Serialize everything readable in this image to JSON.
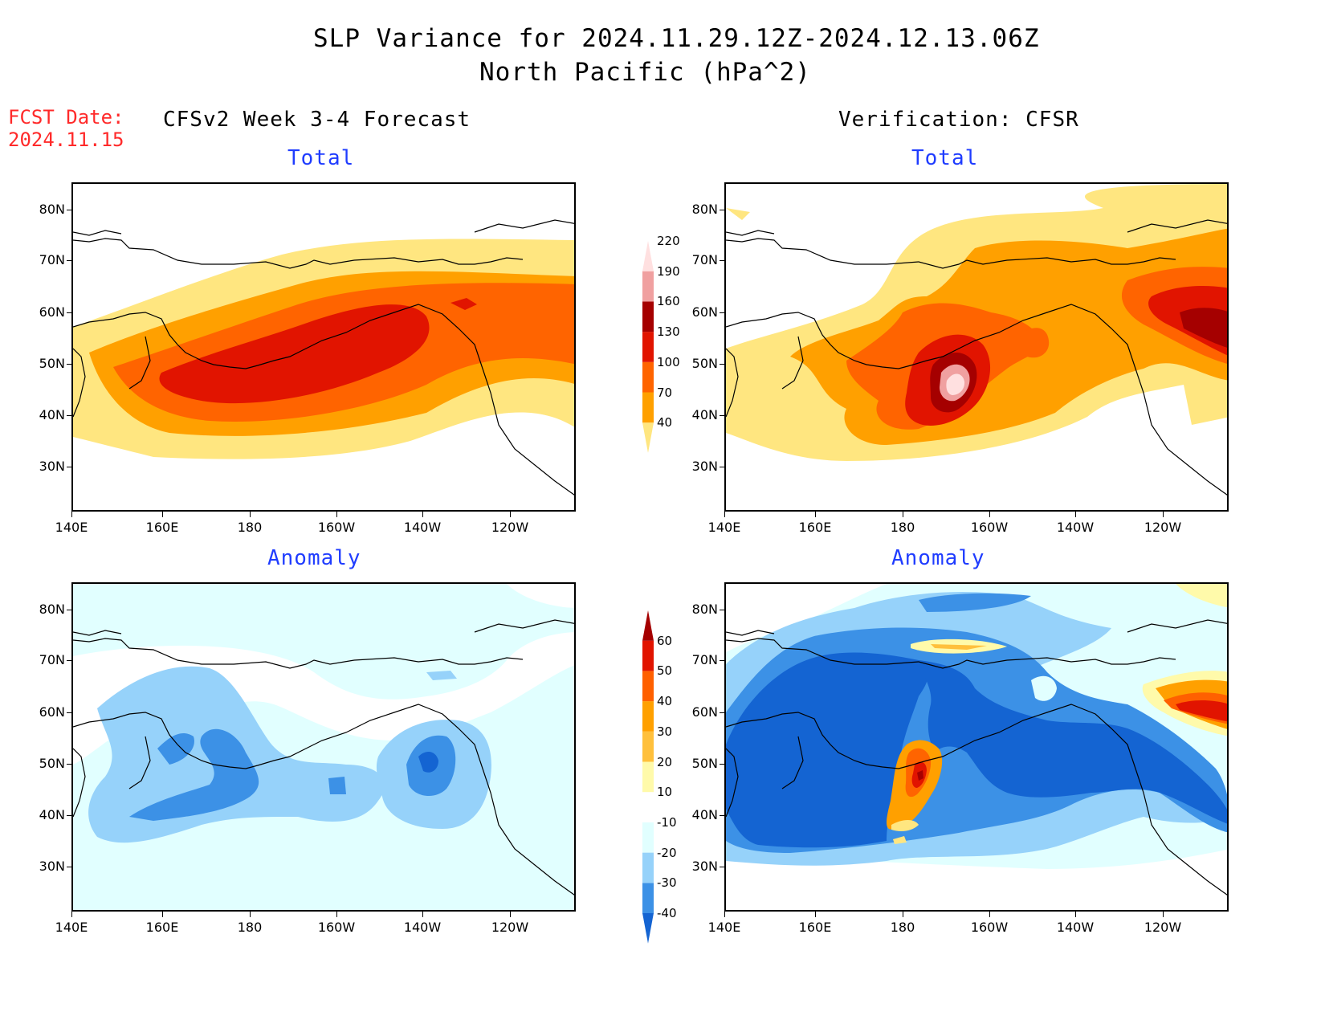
{
  "title": {
    "line1": "SLP Variance for 2024.11.29.12Z-2024.12.13.06Z",
    "line2": "North Pacific (hPa^2)"
  },
  "fcst": {
    "label": "FCST Date:",
    "date": "2024.11.15"
  },
  "columns": {
    "left": "CFSv2 Week 3-4 Forecast",
    "right": "Verification: CFSR"
  },
  "panels": {
    "fc_total": "Total",
    "ver_total": "Total",
    "fc_anom": "Anomaly",
    "ver_anom": "Anomaly"
  },
  "axes": {
    "lat_labels": [
      "80N",
      "70N",
      "60N",
      "50N",
      "40N",
      "30N"
    ],
    "lon_labels": [
      "140E",
      "160E",
      "180",
      "160W",
      "140W",
      "120W"
    ]
  },
  "colorbars": {
    "total": {
      "levels": [
        "40",
        "70",
        "100",
        "130",
        "160",
        "190",
        "220"
      ],
      "colors": [
        "#ffe680",
        "#ffa000",
        "#ff6400",
        "#e11400",
        "#a50000",
        "#f0a0a0",
        "#ffe0e0"
      ]
    },
    "anomaly": {
      "levels": [
        "-40",
        "-30",
        "-20",
        "-10",
        "10",
        "20",
        "30",
        "40",
        "50",
        "60"
      ],
      "colors": [
        "#1464d2",
        "#3c91e6",
        "#96d2fa",
        "#e1ffff",
        "#ffffff",
        "#fffaaa",
        "#ffc03c",
        "#ffa000",
        "#ff6000",
        "#e11400",
        "#a50000"
      ]
    }
  }
}
